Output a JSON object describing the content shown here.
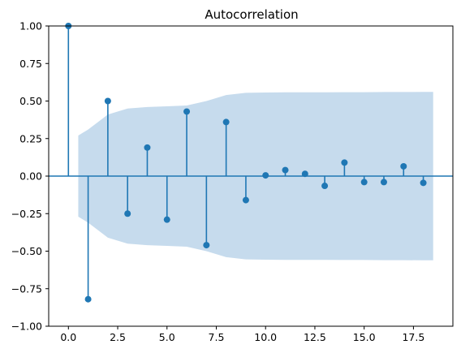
{
  "chart_data": {
    "type": "stem",
    "title": "Autocorrelation",
    "xlabel": "",
    "ylabel": "",
    "xlim": [
      -1,
      19.5
    ],
    "ylim": [
      -1.0,
      1.0
    ],
    "x_ticks": [
      0.0,
      2.5,
      5.0,
      7.5,
      10.0,
      12.5,
      15.0,
      17.5
    ],
    "x_tick_labels": [
      "0.0",
      "2.5",
      "5.0",
      "7.5",
      "10.0",
      "12.5",
      "15.0",
      "17.5"
    ],
    "y_ticks": [
      -1.0,
      -0.75,
      -0.5,
      -0.25,
      0.0,
      0.25,
      0.5,
      0.75,
      1.0
    ],
    "y_tick_labels": [
      "−1.00",
      "−0.75",
      "−0.50",
      "−0.25",
      "0.00",
      "0.25",
      "0.50",
      "0.75",
      "1.00"
    ],
    "series": [
      {
        "x": [
          0,
          1,
          2,
          3,
          4,
          5,
          6,
          7,
          8,
          9,
          10,
          11,
          12,
          13,
          14,
          15,
          16,
          17,
          18
        ],
        "values": [
          1.0,
          -0.82,
          0.5,
          -0.25,
          0.19,
          -0.29,
          0.43,
          -0.46,
          0.36,
          -0.16,
          0.005,
          0.04,
          0.015,
          -0.065,
          0.09,
          -0.04,
          -0.04,
          0.065,
          -0.045
        ]
      }
    ],
    "confidence_band": {
      "x": [
        0.5,
        1,
        2,
        3,
        4,
        5,
        6,
        7,
        8,
        9,
        10,
        11,
        12,
        13,
        14,
        15,
        16,
        17,
        18,
        18.5
      ],
      "upper": [
        0.27,
        0.31,
        0.41,
        0.45,
        0.46,
        0.465,
        0.47,
        0.5,
        0.54,
        0.555,
        0.557,
        0.558,
        0.558,
        0.558,
        0.559,
        0.559,
        0.56,
        0.56,
        0.561,
        0.561
      ]
    },
    "grid": false,
    "colors": {
      "stem": "#1f77b4",
      "band": "#c6dbed",
      "baseline": "#1f77b4"
    }
  }
}
